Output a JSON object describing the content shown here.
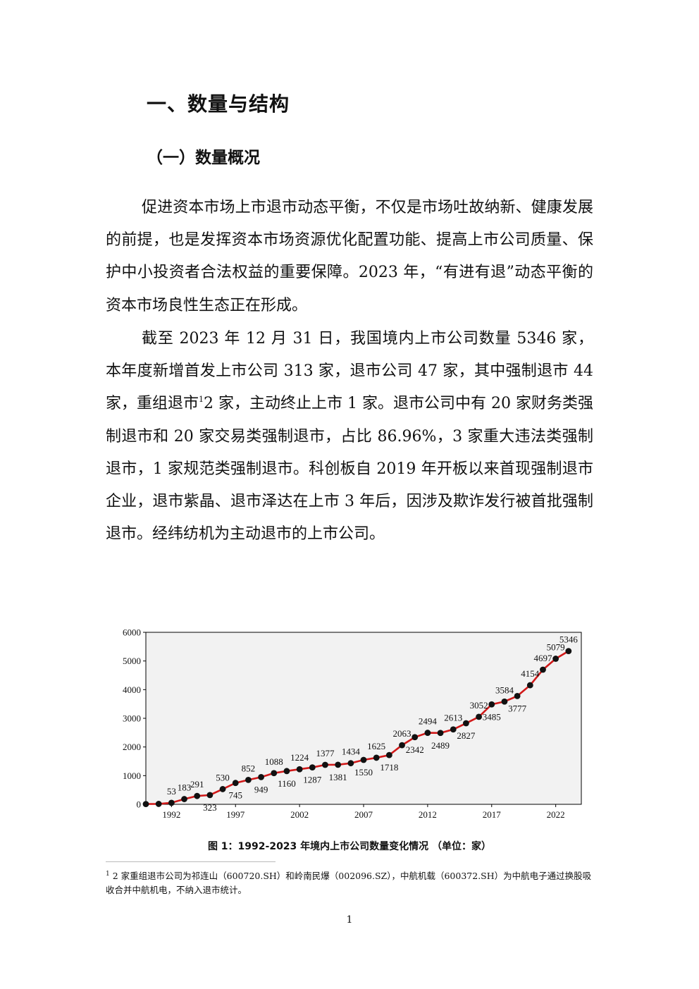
{
  "heading1": "一、数量与结构",
  "heading2": "（一）数量概况",
  "para1": "促进资本市场上市退市动态平衡，不仅是市场吐故纳新、健康发展的前提，也是发挥资本市场资源优化配置功能、提高上市公司质量、保护中小投资者合法权益的重要保障。2023 年，“有进有退”动态平衡的资本市场良性生态正在形成。",
  "para2": {
    "before_ref": "截至 2023 年 12 月 31 日，我国境内上市公司数量 5346 家，本年度新增首发上市公司 313 家，退市公司 47 家，其中强制退市 44 家，重组退市",
    "ref_mark": "1",
    "after_ref": "2 家，主动终止上市 1 家。退市公司中有 20 家财务类强制退市和 20 家交易类强制退市，占比 86.96%，3 家重大违法类强制退市，1 家规范类强制退市。科创板自 2019 年开板以来首现强制退市企业，退市紫晶、退市泽达在上市 3 年后，因涉及欺诈发行被首批强制退市。经纬纺机为主动退市的上市公司。"
  },
  "chart_data": {
    "type": "line",
    "x": [
      1990,
      1991,
      1992,
      1993,
      1994,
      1995,
      1996,
      1997,
      1998,
      1999,
      2000,
      2001,
      2002,
      2003,
      2004,
      2005,
      2006,
      2007,
      2008,
      2009,
      2010,
      2011,
      2012,
      2013,
      2014,
      2015,
      2016,
      2017,
      2018,
      2019,
      2020,
      2021,
      2022,
      2023
    ],
    "values": [
      10,
      14,
      53,
      183,
      291,
      323,
      530,
      745,
      852,
      949,
      1088,
      1160,
      1224,
      1287,
      1377,
      1381,
      1434,
      1550,
      1625,
      1718,
      2063,
      2342,
      2494,
      2489,
      2613,
      2827,
      3052,
      3485,
      3584,
      3777,
      4154,
      4697,
      5079,
      5346
    ],
    "labels": [
      {
        "text": "53",
        "x": 1992,
        "pos": "above"
      },
      {
        "text": "183",
        "x": 1993,
        "pos": "above"
      },
      {
        "text": "291",
        "x": 1994,
        "pos": "above"
      },
      {
        "text": "323",
        "x": 1995,
        "pos": "below"
      },
      {
        "text": "530",
        "x": 1996,
        "pos": "above"
      },
      {
        "text": "745",
        "x": 1997,
        "pos": "below"
      },
      {
        "text": "852",
        "x": 1998,
        "pos": "above"
      },
      {
        "text": "949",
        "x": 1999,
        "pos": "below"
      },
      {
        "text": "1088",
        "x": 2000,
        "pos": "above"
      },
      {
        "text": "1160",
        "x": 2001,
        "pos": "below"
      },
      {
        "text": "1224",
        "x": 2002,
        "pos": "above"
      },
      {
        "text": "1287",
        "x": 2003,
        "pos": "below"
      },
      {
        "text": "1377",
        "x": 2004,
        "pos": "above"
      },
      {
        "text": "1381",
        "x": 2005,
        "pos": "below"
      },
      {
        "text": "1434",
        "x": 2006,
        "pos": "above"
      },
      {
        "text": "1550",
        "x": 2007,
        "pos": "below"
      },
      {
        "text": "1625",
        "x": 2008,
        "pos": "above"
      },
      {
        "text": "1718",
        "x": 2009,
        "pos": "below"
      },
      {
        "text": "2063",
        "x": 2010,
        "pos": "above"
      },
      {
        "text": "2342",
        "x": 2011,
        "pos": "below"
      },
      {
        "text": "2494",
        "x": 2012,
        "pos": "above"
      },
      {
        "text": "2489",
        "x": 2013,
        "pos": "below"
      },
      {
        "text": "2613",
        "x": 2014,
        "pos": "above"
      },
      {
        "text": "2827",
        "x": 2015,
        "pos": "below"
      },
      {
        "text": "3052",
        "x": 2016,
        "pos": "above"
      },
      {
        "text": "3485",
        "x": 2017,
        "pos": "below"
      },
      {
        "text": "3584",
        "x": 2018,
        "pos": "above"
      },
      {
        "text": "3777",
        "x": 2019,
        "pos": "below"
      },
      {
        "text": "4154",
        "x": 2020,
        "pos": "above"
      },
      {
        "text": "4697",
        "x": 2021,
        "pos": "above"
      },
      {
        "text": "5079",
        "x": 2022,
        "pos": "above"
      },
      {
        "text": "5346",
        "x": 2023,
        "pos": "above"
      }
    ],
    "x_ticks": [
      "1992",
      "1997",
      "2002",
      "2007",
      "2012",
      "2017",
      "2022"
    ],
    "y_ticks": [
      "0",
      "1000",
      "2000",
      "3000",
      "4000",
      "5000",
      "6000"
    ],
    "ylim": [
      0,
      6000
    ],
    "xlim": [
      1990,
      2024
    ],
    "line_color": "#d11a1a",
    "marker_color": "#111111",
    "plot_background": "#f2f2f2",
    "grid": false,
    "legend": "none"
  },
  "caption": "图 1：1992-2023 年境内上市公司数量变化情况 （单位：家）",
  "footnote": {
    "mark": "1",
    "text": " 2 家重组退市公司为祁连山（600720.SH）和岭南民爆（002096.SZ），中航机载（600372.SH）为中航电子通过换股吸收合并中航机电，不纳入退市统计。"
  },
  "page_number": "1"
}
